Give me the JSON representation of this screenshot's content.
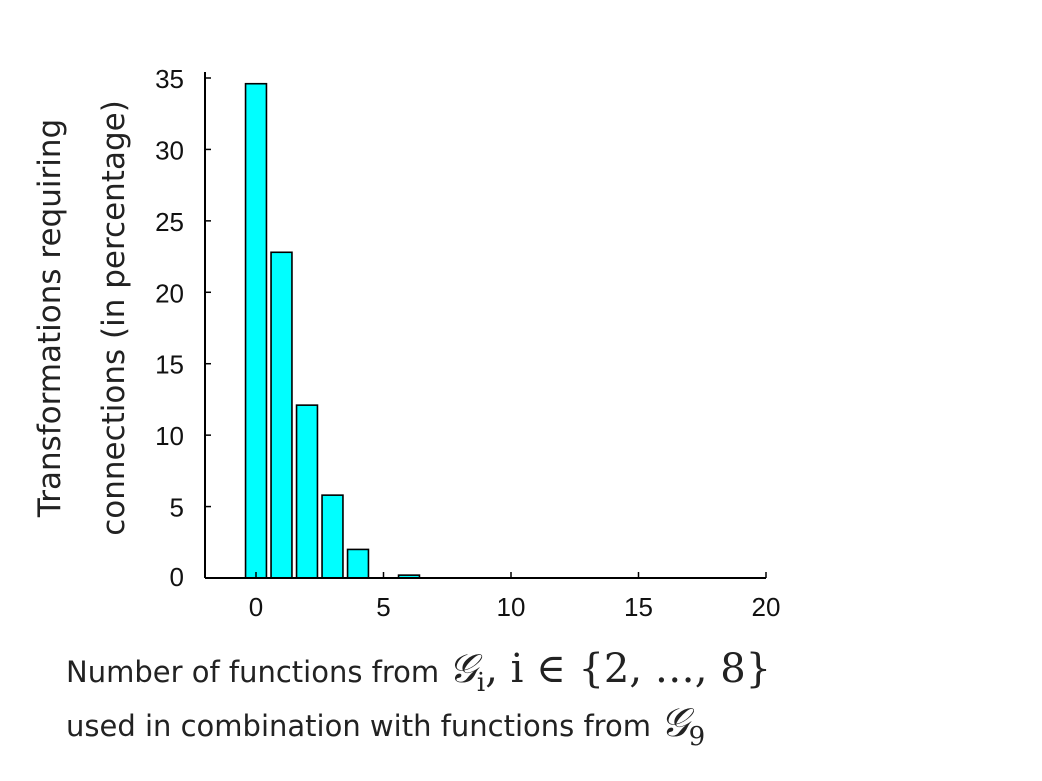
{
  "chart_data": {
    "type": "bar",
    "x": [
      0,
      1,
      2,
      3,
      4,
      5,
      6,
      7,
      8,
      9,
      10,
      11,
      12,
      13,
      14,
      15,
      16,
      17,
      18,
      19,
      20
    ],
    "values": [
      34.6,
      22.8,
      12.1,
      5.8,
      2.0,
      0.0,
      0.2,
      0.0,
      0.0,
      0.0,
      0.0,
      0.0,
      0.0,
      0.0,
      0.0,
      0.0,
      0.0,
      0.0,
      0.0,
      0.0,
      0.0
    ],
    "xlim": [
      -2,
      20
    ],
    "ylim": [
      0,
      35
    ],
    "xticks": [
      "0",
      "5",
      "10",
      "15",
      "20"
    ],
    "yticks": [
      "0",
      "5",
      "10",
      "15",
      "20",
      "25",
      "30",
      "35"
    ],
    "ylabel": [
      "Transformations  requiring",
      "connections (in percentage)"
    ],
    "xlabel": {
      "line1_text": "Number of functions from",
      "line1_math": "𝒢",
      "line1_math_sub": "i",
      "line1_math_tail": ", i ∈ {2, …, 8}",
      "line2_text": "used in combination with functions from",
      "line2_math": "𝒢",
      "line2_math_sub": "9"
    },
    "colors": {
      "bar_fill": "#00ffff",
      "bar_stroke": "#000000"
    },
    "grid": false
  }
}
